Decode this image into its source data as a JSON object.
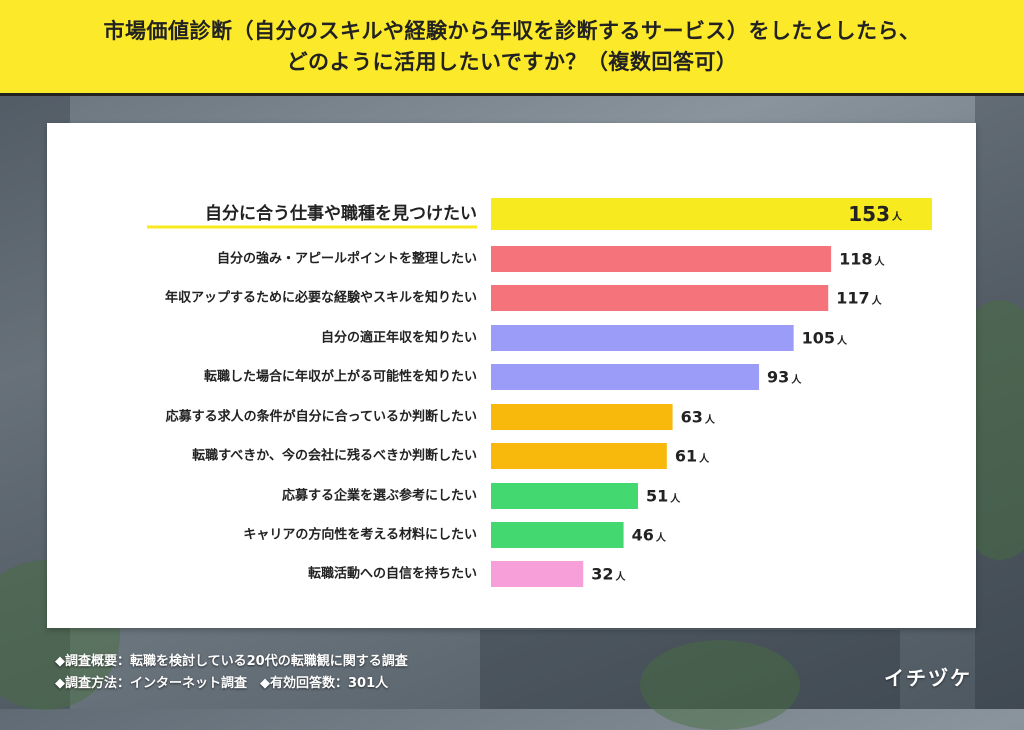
{
  "header": {
    "title_line1": "市場価値診断（自分のスキルや経験から年収を診断するサービス）をしたとしたら、",
    "title_line2": "どのように活用したいですか？（複数回答可）"
  },
  "chart_data": {
    "type": "bar",
    "orientation": "horizontal",
    "unit": "人",
    "categories": [
      "自分に合う仕事や職種を見つけたい",
      "自分の強み・アピールポイントを整理したい",
      "年収アップするために必要な経験やスキルを知りたい",
      "自分の適正年収を知りたい",
      "転職した場合に年収が上がる可能性を知りたい",
      "応募する求人の条件が自分に合っているか判断したい",
      "転職すべきか、今の会社に残るべきか判断したい",
      "応募する企業を選ぶ参考にしたい",
      "キャリアの方向性を考える材料にしたい",
      "転職活動への自信を持ちたい"
    ],
    "values": [
      153,
      118,
      117,
      105,
      93,
      63,
      61,
      51,
      46,
      32
    ],
    "colors": [
      "#f7ea1f",
      "#f5737a",
      "#f5737a",
      "#9b9cf7",
      "#9b9cf7",
      "#f9b90c",
      "#f9b90c",
      "#44d870",
      "#44d870",
      "#f79fd8"
    ],
    "highlight_index": 0,
    "grid": false,
    "legend": "none"
  },
  "footer": {
    "overview": "◆調査概要：転職を検討している20代の転職観に関する調査",
    "method": "◆調査方法：インターネット調査　◆有効回答数：301人",
    "brand": "イチヅケ"
  }
}
